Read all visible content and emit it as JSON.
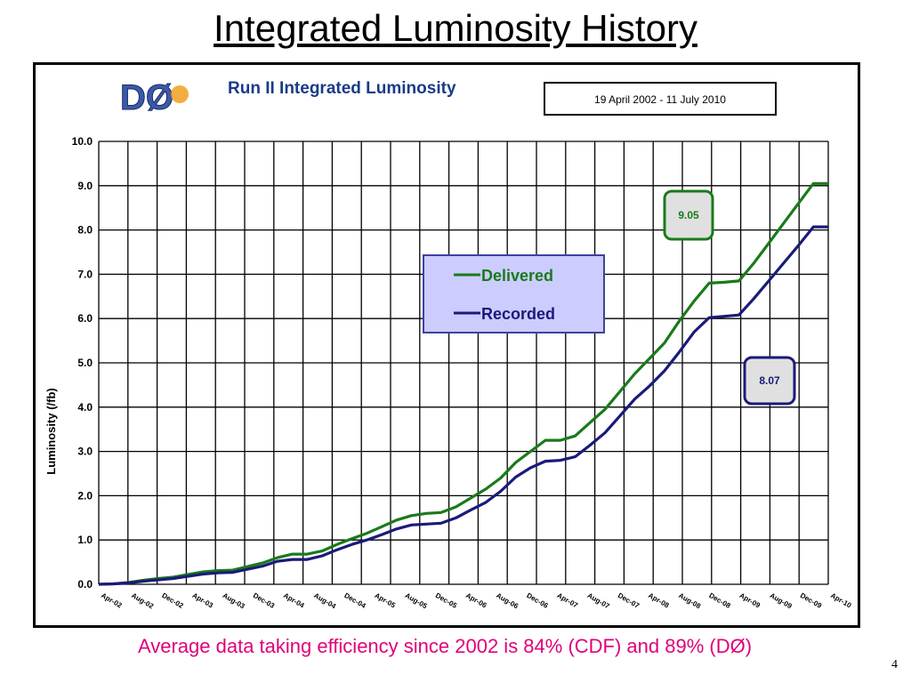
{
  "slide": {
    "title": "Integrated Luminosity History",
    "footer": "Average data taking efficiency since 2002 is 84% (CDF) and 89% (DØ)",
    "page_number": "4"
  },
  "logo_text": "DØ",
  "colors": {
    "delivered": "#1a7a1a",
    "recorded": "#1a1a7a",
    "legend_bg": "#ccccff",
    "legend_border": "#4040a0",
    "callout_bg": "#e0e0e0",
    "footer": "#e0007a"
  },
  "chart_data": {
    "type": "line",
    "title": "Run II Integrated Luminosity",
    "date_range": "19 April 2002 - 11 July 2010",
    "xlabel": "",
    "ylabel": "Luminosity (/fb)",
    "ylim": [
      0,
      10
    ],
    "grid": true,
    "legend_position": "center",
    "x_tick_labels": [
      "Apr-02",
      "Aug-02",
      "Dec-02",
      "Apr-03",
      "Aug-03",
      "Dec-03",
      "Apr-04",
      "Aug-04",
      "Dec-04",
      "Apr-05",
      "Aug-05",
      "Dec-05",
      "Apr-06",
      "Aug-06",
      "Dec-06",
      "Apr-07",
      "Aug-07",
      "Dec-07",
      "Apr-08",
      "Aug-08",
      "Dec-08",
      "Apr-09",
      "Aug-09",
      "Dec-09",
      "Apr-10"
    ],
    "y_tick_labels": [
      "0.0",
      "1.0",
      "2.0",
      "3.0",
      "4.0",
      "5.0",
      "6.0",
      "7.0",
      "8.0",
      "9.0",
      "10.0"
    ],
    "x": [
      "Apr-02",
      "Jun-02",
      "Aug-02",
      "Oct-02",
      "Dec-02",
      "Feb-03",
      "Apr-03",
      "Jun-03",
      "Aug-03",
      "Oct-03",
      "Dec-03",
      "Feb-04",
      "Apr-04",
      "Jun-04",
      "Aug-04",
      "Oct-04",
      "Dec-04",
      "Feb-05",
      "Apr-05",
      "Jun-05",
      "Aug-05",
      "Oct-05",
      "Dec-05",
      "Feb-06",
      "Apr-06",
      "Jun-06",
      "Aug-06",
      "Oct-06",
      "Dec-06",
      "Feb-07",
      "Apr-07",
      "Jun-07",
      "Aug-07",
      "Oct-07",
      "Dec-07",
      "Feb-08",
      "Apr-08",
      "Jun-08",
      "Aug-08",
      "Oct-08",
      "Dec-08",
      "Feb-09",
      "Apr-09",
      "Jun-09",
      "Aug-09",
      "Oct-09",
      "Dec-09",
      "Feb-10",
      "Apr-10",
      "Jul-10"
    ],
    "series": [
      {
        "name": "Delivered",
        "values": [
          0.0,
          0.01,
          0.04,
          0.09,
          0.13,
          0.16,
          0.22,
          0.28,
          0.31,
          0.32,
          0.4,
          0.48,
          0.6,
          0.68,
          0.68,
          0.75,
          0.9,
          1.03,
          1.15,
          1.3,
          1.45,
          1.55,
          1.6,
          1.62,
          1.75,
          1.95,
          2.15,
          2.4,
          2.75,
          3.0,
          3.25,
          3.25,
          3.35,
          3.65,
          3.95,
          4.35,
          4.75,
          5.1,
          5.45,
          5.95,
          6.4,
          6.8,
          6.82,
          6.85,
          7.25,
          7.7,
          8.15,
          8.6,
          9.05,
          9.05
        ]
      },
      {
        "name": "Recorded",
        "values": [
          0.0,
          0.01,
          0.03,
          0.07,
          0.1,
          0.13,
          0.18,
          0.23,
          0.26,
          0.27,
          0.34,
          0.41,
          0.52,
          0.56,
          0.56,
          0.64,
          0.78,
          0.9,
          1.0,
          1.12,
          1.25,
          1.34,
          1.36,
          1.38,
          1.5,
          1.68,
          1.85,
          2.1,
          2.42,
          2.63,
          2.78,
          2.8,
          2.88,
          3.14,
          3.42,
          3.8,
          4.18,
          4.48,
          4.82,
          5.25,
          5.7,
          6.02,
          6.05,
          6.08,
          6.45,
          6.85,
          7.25,
          7.65,
          8.07,
          8.07
        ]
      }
    ],
    "annotations": [
      {
        "text": "9.05",
        "series": "Delivered"
      },
      {
        "text": "8.07",
        "series": "Recorded"
      }
    ]
  }
}
